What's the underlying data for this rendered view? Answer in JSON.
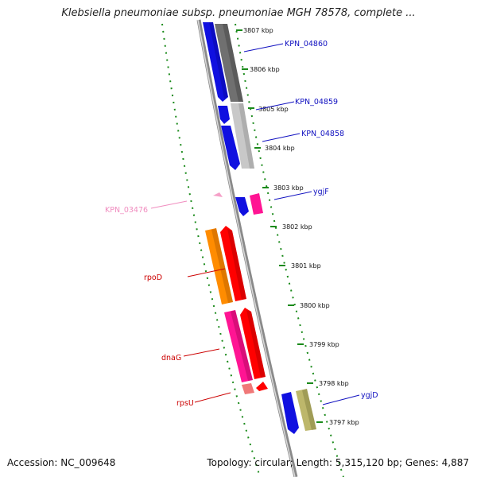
{
  "title": "Klebsiella pneumoniae subsp. pneumoniae MGH 78578, complete ...",
  "footer": {
    "accession": "Accession: NC_009648",
    "summary": "Topology: circular; Length: 5,315,120 bp; Genes: 4,887"
  },
  "colors": {
    "backbone": "#9a9a9a",
    "dots": "#1a8a1a",
    "blue": "#1010e0",
    "dark_gray": "#707070",
    "light_gray": "#c8c8c8",
    "pink": "#ff1493",
    "orange": "#ff8c00",
    "red": "#ff0000",
    "khaki": "#bdb76b",
    "light_pink": "#f5a0c8",
    "salmon": "#f07878"
  },
  "ticks": [
    "3807 kbp",
    "3806 kbp",
    "3805 kbp",
    "3804 kbp",
    "3803 kbp",
    "3802 kbp",
    "3801 kbp",
    "3800 kbp",
    "3799 kbp",
    "3798 kbp",
    "3797 kbp"
  ],
  "gene_labels": [
    {
      "name": "KPN_04860",
      "color": "#1010c0"
    },
    {
      "name": "KPN_04859",
      "color": "#1010c0"
    },
    {
      "name": "KPN_04858",
      "color": "#1010c0"
    },
    {
      "name": "ygjF",
      "color": "#1010c0"
    },
    {
      "name": "KPN_03476",
      "color": "#f08cbf"
    },
    {
      "name": "rpoD",
      "color": "#cc0000"
    },
    {
      "name": "dnaG",
      "color": "#cc0000"
    },
    {
      "name": "rpsU",
      "color": "#cc0000"
    },
    {
      "name": "ygjD",
      "color": "#1010c0"
    }
  ]
}
